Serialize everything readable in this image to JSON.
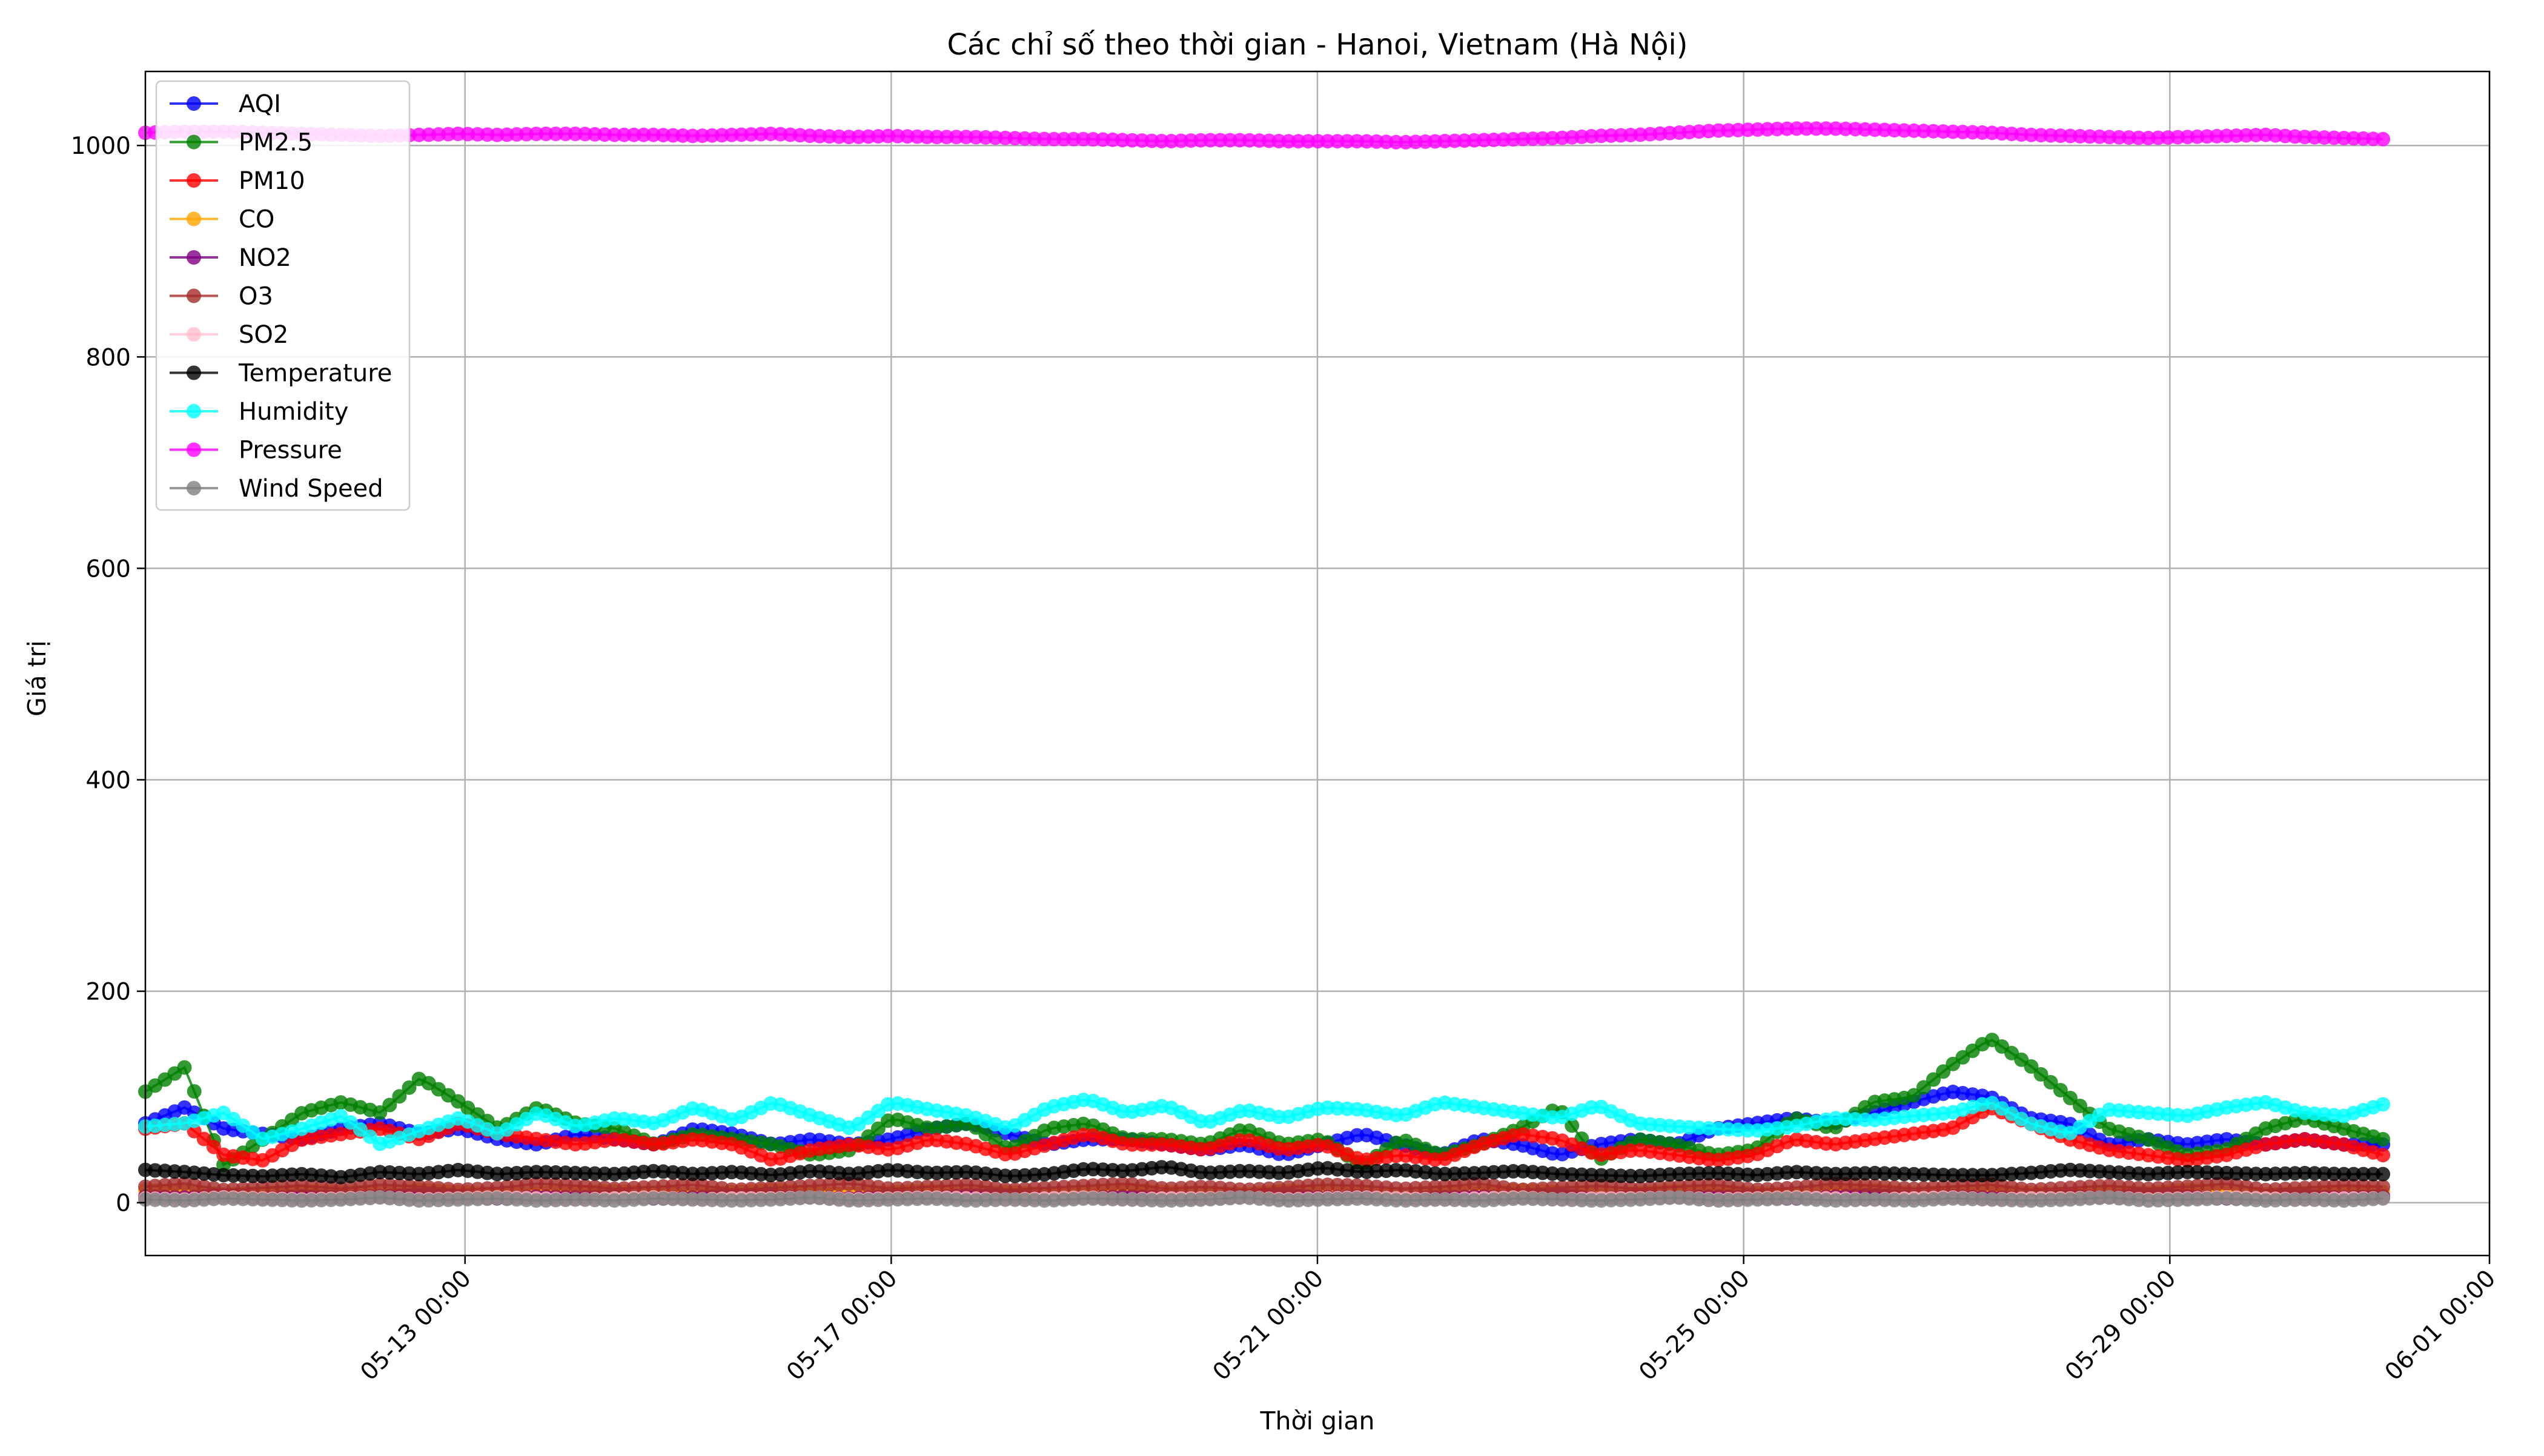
{
  "chart_data": {
    "type": "line",
    "title": "Các chỉ số theo thời gian - Hanoi, Vietnam (Hà Nội)",
    "xlabel": "Thời gian",
    "ylabel": "Giá trị",
    "x_start": "2025-05-10T00:00",
    "x_end": "2025-05-31T00:00",
    "xlim": [
      "2025-05-10T00:00",
      "2025-06-01T00:00"
    ],
    "ylim": [
      -50,
      1070
    ],
    "grid": true,
    "legend_position": "upper-left",
    "x_ticks": [
      "05-13 00:00",
      "05-17 00:00",
      "05-21 00:00",
      "05-25 00:00",
      "05-29 00:00",
      "06-01 00:00"
    ],
    "x_tick_days": [
      3,
      7,
      11,
      15,
      19,
      22
    ],
    "y_ticks": [
      0,
      200,
      400,
      600,
      800,
      1000
    ],
    "series": [
      {
        "name": "AQI",
        "color": "#0000ff",
        "values": [
          75,
          90,
          70,
          65,
          60,
          70,
          75,
          65,
          70,
          60,
          55,
          65,
          60,
          55,
          70,
          65,
          55,
          60,
          55,
          60,
          70,
          75,
          65,
          55,
          60,
          60,
          55,
          50,
          55,
          45,
          55,
          65,
          55,
          45,
          60,
          55,
          45,
          55,
          60,
          55,
          70,
          75,
          80,
          75,
          85,
          95,
          105,
          100,
          80,
          75,
          55,
          60,
          55,
          60,
          55,
          60,
          55,
          55
        ]
      },
      {
        "name": "PM2.5",
        "color": "#008000",
        "values": [
          105,
          128,
          35,
          60,
          85,
          95,
          85,
          118,
          95,
          70,
          90,
          75,
          70,
          55,
          65,
          60,
          55,
          45,
          50,
          80,
          70,
          75,
          50,
          70,
          75,
          60,
          60,
          55,
          70,
          55,
          60,
          35,
          60,
          45,
          55,
          70,
          90,
          40,
          60,
          55,
          45,
          50,
          80,
          70,
          95,
          100,
          130,
          155,
          130,
          100,
          70,
          60,
          45,
          50,
          70,
          80,
          70,
          60
        ]
      },
      {
        "name": "PM10",
        "color": "#ff0000",
        "values": [
          70,
          75,
          45,
          40,
          60,
          65,
          70,
          60,
          75,
          65,
          60,
          55,
          60,
          55,
          60,
          55,
          40,
          50,
          55,
          50,
          60,
          55,
          45,
          55,
          65,
          55,
          55,
          50,
          60,
          50,
          55,
          40,
          45,
          40,
          55,
          65,
          60,
          45,
          50,
          45,
          40,
          45,
          60,
          55,
          60,
          65,
          70,
          90,
          75,
          60,
          50,
          45,
          40,
          45,
          55,
          60,
          55,
          45
        ]
      },
      {
        "name": "CO",
        "color": "#ffa500",
        "values": [
          12,
          10,
          8,
          9,
          11,
          10,
          9,
          12,
          10,
          8,
          9,
          10,
          11,
          9,
          8,
          10,
          12,
          9,
          8,
          10,
          11,
          9,
          10,
          8,
          9,
          12,
          10,
          9,
          8,
          11,
          10,
          9,
          8,
          10,
          9,
          12,
          10,
          8,
          9,
          11,
          10,
          9,
          8,
          10,
          12,
          9,
          10,
          11,
          9,
          8,
          10,
          9,
          12,
          10,
          8,
          9,
          11,
          10
        ]
      },
      {
        "name": "NO2",
        "color": "#800080",
        "values": [
          6,
          5,
          7,
          4,
          6,
          5,
          6,
          7,
          5,
          4,
          6,
          5,
          6,
          4,
          5,
          7,
          6,
          5,
          4,
          6,
          5,
          7,
          6,
          4,
          5,
          6,
          5,
          4,
          6,
          7,
          5,
          6,
          4,
          5,
          6,
          5,
          7,
          4,
          6,
          5,
          6,
          5,
          4,
          6,
          7,
          5,
          6,
          5,
          4,
          6,
          5,
          7,
          6,
          4,
          5,
          6,
          5,
          6
        ]
      },
      {
        "name": "O3",
        "color": "#a52a2a",
        "values": [
          15,
          18,
          12,
          14,
          16,
          13,
          17,
          15,
          12,
          14,
          18,
          16,
          13,
          15,
          17,
          12,
          14,
          16,
          18,
          13,
          15,
          17,
          12,
          14,
          16,
          18,
          13,
          15,
          12,
          14,
          17,
          16,
          13,
          15,
          18,
          12,
          14,
          16,
          13,
          15,
          17,
          12,
          14,
          18,
          16,
          13,
          15,
          17,
          12,
          14,
          16,
          13,
          15,
          18,
          12,
          14,
          16,
          15
        ]
      },
      {
        "name": "SO2",
        "color": "#ffc0cb",
        "values": [
          4,
          3,
          5,
          4,
          3,
          4,
          5,
          3,
          4,
          5,
          4,
          3,
          4,
          5,
          3,
          4,
          4,
          5,
          3,
          4,
          5,
          4,
          3,
          4,
          5,
          3,
          4,
          4,
          5,
          3,
          4,
          5,
          4,
          3,
          4,
          5,
          3,
          4,
          4,
          5,
          3,
          4,
          5,
          4,
          3,
          4,
          5,
          3,
          4,
          4,
          5,
          3,
          4,
          5,
          4,
          3,
          4,
          4
        ]
      },
      {
        "name": "Temperature",
        "color": "#000000",
        "values": [
          31,
          29,
          26,
          25,
          27,
          24,
          29,
          27,
          31,
          27,
          29,
          28,
          27,
          30,
          27,
          29,
          26,
          30,
          27,
          31,
          28,
          29,
          25,
          27,
          32,
          30,
          34,
          28,
          30,
          28,
          33,
          29,
          31,
          27,
          28,
          30,
          27,
          26,
          25,
          27,
          28,
          26,
          29,
          27,
          28,
          27,
          26,
          26,
          28,
          31,
          29,
          27,
          29,
          28,
          27,
          28,
          27,
          27
        ]
      },
      {
        "name": "Humidity",
        "color": "#00ffff",
        "values": [
          72,
          75,
          85,
          60,
          70,
          82,
          55,
          68,
          80,
          65,
          85,
          72,
          80,
          75,
          90,
          78,
          95,
          82,
          70,
          95,
          88,
          82,
          70,
          90,
          98,
          85,
          92,
          75,
          88,
          80,
          90,
          88,
          82,
          95,
          90,
          85,
          80,
          92,
          75,
          72,
          70,
          68,
          72,
          80,
          78,
          82,
          85,
          95,
          75,
          65,
          88,
          85,
          82,
          90,
          95,
          85,
          82,
          93
        ]
      },
      {
        "name": "Pressure",
        "color": "#ff00ff",
        "values": [
          1012,
          1013,
          1013,
          1012,
          1011,
          1010,
          1009,
          1010,
          1011,
          1010,
          1011,
          1011,
          1010,
          1010,
          1009,
          1010,
          1011,
          1009,
          1008,
          1009,
          1008,
          1008,
          1007,
          1006,
          1006,
          1005,
          1004,
          1005,
          1005,
          1004,
          1004,
          1004,
          1003,
          1004,
          1005,
          1006,
          1007,
          1009,
          1010,
          1012,
          1014,
          1015,
          1016,
          1016,
          1015,
          1014,
          1013,
          1012,
          1010,
          1009,
          1008,
          1007,
          1008,
          1009,
          1010,
          1008,
          1007,
          1006
        ]
      },
      {
        "name": "Wind Speed",
        "color": "#808080",
        "values": [
          3,
          2,
          4,
          3,
          2,
          3,
          5,
          2,
          3,
          4,
          2,
          3,
          2,
          4,
          3,
          2,
          3,
          5,
          2,
          3,
          4,
          2,
          3,
          2,
          4,
          3,
          2,
          3,
          5,
          2,
          3,
          4,
          2,
          3,
          2,
          4,
          3,
          2,
          3,
          5,
          2,
          3,
          4,
          2,
          3,
          2,
          4,
          3,
          2,
          3,
          5,
          2,
          3,
          4,
          2,
          3,
          2,
          4
        ]
      }
    ]
  }
}
